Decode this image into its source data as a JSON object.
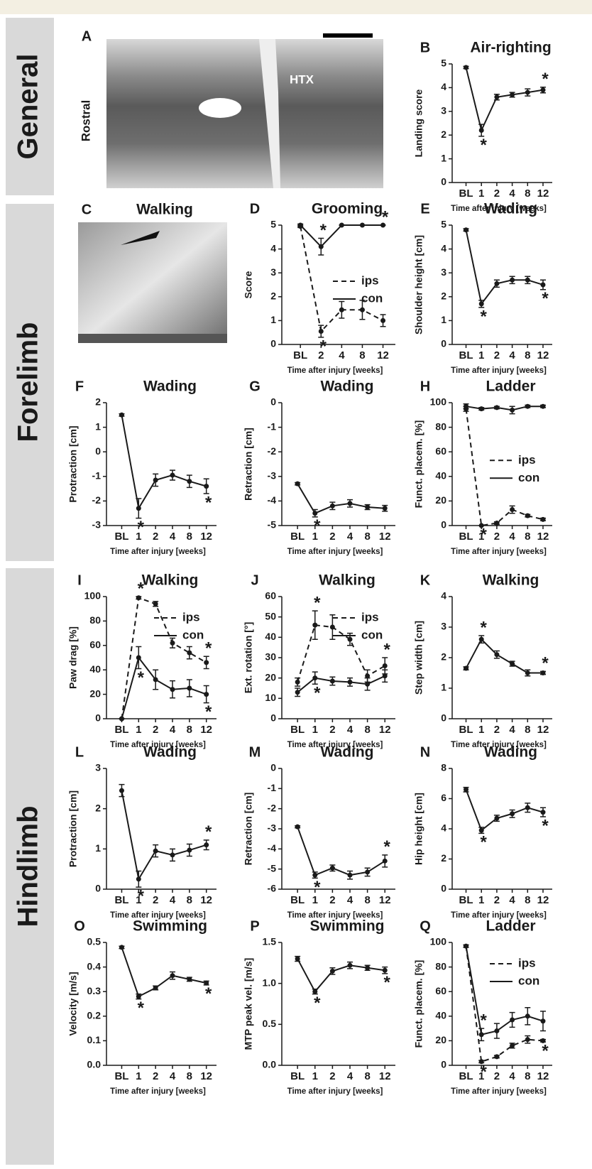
{
  "sections": [
    "General",
    "Forelimb",
    "Hindlimb"
  ],
  "images": [
    {
      "letter": "A",
      "labels": [
        "Rostral",
        "HTX"
      ]
    },
    {
      "letter": "C",
      "title": "Walking"
    }
  ],
  "chart_data": [
    {
      "type": "line",
      "letter": "B",
      "title": "Air-righting",
      "ylabel": "Landing score",
      "xlabel": "Time after injury [weeks]",
      "categories": [
        "BL",
        "1",
        "2",
        "4",
        "8",
        "12"
      ],
      "ylim": [
        0,
        5
      ],
      "yticks": [
        0,
        1,
        2,
        3,
        4,
        5
      ],
      "series": [
        {
          "color": "#1a1a1a",
          "line_style": "solid",
          "values": [
            4.85,
            2.2,
            3.6,
            3.7,
            3.8,
            3.9
          ],
          "errors": [
            0.05,
            0.25,
            0.12,
            0.1,
            0.15,
            0.12
          ],
          "markers": [
            null,
            "*",
            null,
            null,
            null,
            "*"
          ]
        }
      ]
    },
    {
      "type": "line",
      "letter": "D",
      "title": "Grooming",
      "ylabel": "Score",
      "xlabel": "Time after injury [weeks]",
      "categories": [
        "BL",
        "2",
        "4",
        "8",
        "12"
      ],
      "ylim": [
        0,
        5
      ],
      "yticks": [
        0,
        1,
        2,
        3,
        4,
        5
      ],
      "legend_loc": "center right",
      "series": [
        {
          "name": "ips",
          "color": "#1a1a1a",
          "line_style": "dashed",
          "values": [
            4.95,
            0.55,
            1.45,
            1.45,
            1.0
          ],
          "errors": [
            0.05,
            0.25,
            0.35,
            0.4,
            0.25
          ],
          "markers": [
            null,
            "*",
            null,
            null,
            null
          ]
        },
        {
          "name": "con",
          "color": "#1a1a1a",
          "line_style": "solid",
          "values": [
            5,
            4.1,
            5,
            5,
            5
          ],
          "errors": [
            0.05,
            0.35,
            0,
            0,
            0
          ],
          "markers": [
            null,
            "*",
            null,
            null,
            "*"
          ]
        }
      ]
    },
    {
      "type": "line",
      "letter": "E",
      "title": "Wading",
      "ylabel": "Shoulder height [cm]",
      "xlabel": "Time after injury [weeks]",
      "categories": [
        "BL",
        "1",
        "2",
        "4",
        "8",
        "12"
      ],
      "ylim": [
        0,
        5
      ],
      "yticks": [
        0,
        1,
        2,
        3,
        4,
        5
      ],
      "series": [
        {
          "color": "#1a1a1a",
          "line_style": "solid",
          "values": [
            4.8,
            1.7,
            2.55,
            2.7,
            2.7,
            2.5
          ],
          "errors": [
            0.05,
            0.15,
            0.15,
            0.15,
            0.15,
            0.2
          ],
          "markers": [
            null,
            "*",
            null,
            null,
            null,
            "*"
          ]
        }
      ]
    },
    {
      "type": "line",
      "letter": "F",
      "title": "Wading",
      "ylabel": "Protraction [cm]",
      "xlabel": "Time after injury [weeks]",
      "categories": [
        "BL",
        "1",
        "2",
        "4",
        "8",
        "12"
      ],
      "ylim": [
        -3,
        2
      ],
      "yticks": [
        -3,
        -2,
        -1,
        0,
        1,
        2
      ],
      "series": [
        {
          "color": "#1a1a1a",
          "line_style": "solid",
          "values": [
            1.5,
            -2.3,
            -1.15,
            -0.95,
            -1.2,
            -1.4
          ],
          "errors": [
            0.05,
            0.4,
            0.25,
            0.2,
            0.25,
            0.3
          ],
          "markers": [
            null,
            "*",
            null,
            null,
            null,
            "*"
          ]
        }
      ]
    },
    {
      "type": "line",
      "letter": "G",
      "title": "Wading",
      "ylabel": "Retraction [cm]",
      "xlabel": "Time after injury [weeks]",
      "categories": [
        "BL",
        "1",
        "2",
        "4",
        "8",
        "12"
      ],
      "ylim": [
        -5,
        0
      ],
      "yticks": [
        -5,
        -4,
        -3,
        -2,
        -1,
        0
      ],
      "series": [
        {
          "color": "#1a1a1a",
          "line_style": "solid",
          "values": [
            -3.3,
            -4.5,
            -4.2,
            -4.1,
            -4.25,
            -4.3
          ],
          "errors": [
            0.05,
            0.15,
            0.15,
            0.15,
            0.1,
            0.12
          ],
          "markers": [
            null,
            "*",
            null,
            null,
            null,
            null
          ]
        }
      ]
    },
    {
      "type": "line",
      "letter": "H",
      "title": "Ladder",
      "ylabel": "Funct. placem. [%]",
      "xlabel": "Time after injury [weeks]",
      "categories": [
        "BL",
        "1",
        "2",
        "4",
        "8",
        "12"
      ],
      "ylim": [
        0,
        100
      ],
      "yticks": [
        0,
        20,
        40,
        60,
        80,
        100
      ],
      "legend_loc": "center right",
      "series": [
        {
          "name": "ips",
          "color": "#1a1a1a",
          "line_style": "dashed",
          "values": [
            95,
            0,
            2,
            13,
            8,
            5
          ],
          "errors": [
            2,
            0,
            1,
            3,
            1,
            1
          ],
          "markers": [
            null,
            "*",
            null,
            null,
            null,
            null
          ]
        },
        {
          "name": "con",
          "color": "#1a1a1a",
          "line_style": "solid",
          "values": [
            97,
            95,
            96,
            94,
            97,
            97
          ],
          "errors": [
            2,
            1,
            1,
            3,
            1,
            1
          ],
          "markers": [
            null,
            null,
            null,
            null,
            null,
            null
          ]
        }
      ]
    },
    {
      "type": "line",
      "letter": "I",
      "title": "Walking",
      "ylabel": "Paw drag [%]",
      "xlabel": "Time after injury [weeks]",
      "categories": [
        "BL",
        "1",
        "2",
        "4",
        "8",
        "12"
      ],
      "ylim": [
        0,
        100
      ],
      "yticks": [
        0,
        20,
        40,
        60,
        80,
        100
      ],
      "legend_loc": "upper right",
      "series": [
        {
          "name": "ips",
          "color": "#1a1a1a",
          "line_style": "dashed",
          "values": [
            0,
            99,
            94,
            62,
            54,
            46
          ],
          "errors": [
            0,
            1,
            2,
            4,
            5,
            5
          ],
          "markers": [
            null,
            "*",
            null,
            null,
            null,
            "*"
          ]
        },
        {
          "name": "con",
          "color": "#1a1a1a",
          "line_style": "solid",
          "values": [
            0,
            50,
            32,
            24,
            25,
            20
          ],
          "errors": [
            0,
            9,
            8,
            7,
            7,
            7
          ],
          "markers": [
            null,
            "*",
            null,
            null,
            null,
            "*"
          ]
        }
      ]
    },
    {
      "type": "line",
      "letter": "J",
      "title": "Walking",
      "ylabel": "Ext. rotation [°]",
      "xlabel": "Time after injury [weeks]",
      "categories": [
        "BL",
        "1",
        "2",
        "4",
        "8",
        "12"
      ],
      "ylim": [
        0,
        60
      ],
      "yticks": [
        0,
        10,
        20,
        30,
        40,
        50,
        60
      ],
      "legend_loc": "upper right",
      "series": [
        {
          "name": "ips",
          "color": "#1a1a1a",
          "line_style": "dashed",
          "values": [
            18,
            46,
            45,
            39,
            21,
            26
          ],
          "errors": [
            2,
            7,
            6,
            3,
            3,
            4
          ],
          "markers": [
            null,
            "*",
            null,
            null,
            null,
            "*"
          ]
        },
        {
          "name": "con",
          "color": "#1a1a1a",
          "line_style": "solid",
          "values": [
            13,
            20,
            18.5,
            18,
            17,
            21
          ],
          "errors": [
            2,
            3,
            2,
            2,
            3,
            3
          ],
          "markers": [
            null,
            "*",
            null,
            null,
            null,
            null
          ]
        }
      ]
    },
    {
      "type": "line",
      "letter": "K",
      "title": "Walking",
      "ylabel": "Step width [cm]",
      "xlabel": "Time after injury [weeks]",
      "categories": [
        "BL",
        "1",
        "2",
        "4",
        "8",
        "12"
      ],
      "ylim": [
        0,
        4
      ],
      "yticks": [
        0,
        1,
        2,
        3,
        4
      ],
      "series": [
        {
          "color": "#1a1a1a",
          "line_style": "solid",
          "values": [
            1.65,
            2.6,
            2.1,
            1.8,
            1.5,
            1.5
          ],
          "errors": [
            0.05,
            0.12,
            0.12,
            0.08,
            0.1,
            0.05
          ],
          "markers": [
            null,
            "*",
            null,
            null,
            null,
            "*"
          ]
        }
      ]
    },
    {
      "type": "line",
      "letter": "L",
      "title": "Wading",
      "ylabel": "Protraction [cm]",
      "xlabel": "Time after injury [weeks]",
      "categories": [
        "BL",
        "1",
        "2",
        "4",
        "8",
        "12"
      ],
      "ylim": [
        0,
        3
      ],
      "yticks": [
        0,
        1,
        2,
        3
      ],
      "series": [
        {
          "color": "#1a1a1a",
          "line_style": "solid",
          "values": [
            2.45,
            0.25,
            0.95,
            0.85,
            0.97,
            1.1
          ],
          "errors": [
            0.15,
            0.2,
            0.15,
            0.15,
            0.15,
            0.12
          ],
          "markers": [
            null,
            "*",
            null,
            null,
            null,
            "*"
          ]
        }
      ]
    },
    {
      "type": "line",
      "letter": "M",
      "title": "Wading",
      "ylabel": "Retraction [cm]",
      "xlabel": "Time after injury [weeks]",
      "categories": [
        "BL",
        "1",
        "2",
        "4",
        "8",
        "12"
      ],
      "ylim": [
        -6,
        0
      ],
      "yticks": [
        -6,
        -5,
        -4,
        -3,
        -2,
        -1,
        0
      ],
      "series": [
        {
          "color": "#1a1a1a",
          "line_style": "solid",
          "values": [
            -2.9,
            -5.3,
            -4.95,
            -5.3,
            -5.15,
            -4.6
          ],
          "errors": [
            0.05,
            0.15,
            0.15,
            0.2,
            0.2,
            0.3
          ],
          "markers": [
            null,
            "*",
            null,
            null,
            null,
            "*"
          ]
        }
      ]
    },
    {
      "type": "line",
      "letter": "N",
      "title": "Wading",
      "ylabel": "Hip height [cm]",
      "xlabel": "Time after injury [weeks]",
      "categories": [
        "BL",
        "1",
        "2",
        "4",
        "8",
        "12"
      ],
      "ylim": [
        0,
        8
      ],
      "yticks": [
        0,
        2,
        4,
        6,
        8
      ],
      "series": [
        {
          "color": "#1a1a1a",
          "line_style": "solid",
          "values": [
            6.6,
            3.9,
            4.7,
            5,
            5.4,
            5.1
          ],
          "errors": [
            0.15,
            0.2,
            0.2,
            0.25,
            0.3,
            0.3
          ],
          "markers": [
            null,
            "*",
            null,
            null,
            null,
            "*"
          ]
        }
      ]
    },
    {
      "type": "line",
      "letter": "O",
      "title": "Swimming",
      "ylabel": "Velocity [m/s]",
      "xlabel": "Time after injury [weeks]",
      "categories": [
        "BL",
        "1",
        "2",
        "4",
        "8",
        "12"
      ],
      "ylim": [
        0,
        0.5
      ],
      "yticks": [
        {
          "value": 0,
          "label": "0.0"
        },
        0.1,
        0.2,
        0.3,
        0.4,
        0.5
      ],
      "series": [
        {
          "color": "#1a1a1a",
          "line_style": "solid",
          "values": [
            0.48,
            0.28,
            0.315,
            0.365,
            0.35,
            0.335
          ],
          "errors": [
            0.005,
            0.01,
            0.008,
            0.015,
            0.008,
            0.008
          ],
          "markers": [
            null,
            "*",
            null,
            null,
            null,
            "*"
          ]
        }
      ]
    },
    {
      "type": "line",
      "letter": "P",
      "title": "Swimming",
      "ylabel": "MTP peak vel. [m/s]",
      "xlabel": "Time after injury [weeks]",
      "categories": [
        "BL",
        "1",
        "2",
        "4",
        "8",
        "12"
      ],
      "ylim": [
        0,
        1.5
      ],
      "yticks": [
        {
          "value": 0,
          "label": "0.0"
        },
        0.5,
        {
          "value": 1,
          "label": "1.0"
        },
        1.5
      ],
      "series": [
        {
          "color": "#1a1a1a",
          "line_style": "solid",
          "values": [
            1.3,
            0.9,
            1.15,
            1.22,
            1.19,
            1.16
          ],
          "errors": [
            0.03,
            0.03,
            0.04,
            0.04,
            0.03,
            0.04
          ],
          "markers": [
            null,
            "*",
            null,
            null,
            null,
            "*"
          ]
        }
      ]
    },
    {
      "type": "line",
      "letter": "Q",
      "title": "Ladder",
      "ylabel": "Funct. placem. [%]",
      "xlabel": "Time after injury [weeks]",
      "categories": [
        "BL",
        "1",
        "2",
        "4",
        "8",
        "12"
      ],
      "ylim": [
        0,
        100
      ],
      "yticks": [
        0,
        20,
        40,
        60,
        80,
        100
      ],
      "legend_loc": "upper right",
      "series": [
        {
          "name": "ips",
          "color": "#1a1a1a",
          "line_style": "dashed",
          "values": [
            97,
            3,
            7,
            16,
            21,
            20
          ],
          "errors": [
            1,
            1,
            1,
            2,
            3,
            1
          ],
          "markers": [
            null,
            "*",
            null,
            null,
            null,
            "*"
          ]
        },
        {
          "name": "con",
          "color": "#1a1a1a",
          "line_style": "solid",
          "values": [
            97,
            25,
            28,
            37,
            40,
            36
          ],
          "errors": [
            1,
            5,
            6,
            6,
            7,
            8
          ],
          "markers": [
            null,
            "*",
            null,
            null,
            null,
            null
          ]
        }
      ]
    }
  ]
}
